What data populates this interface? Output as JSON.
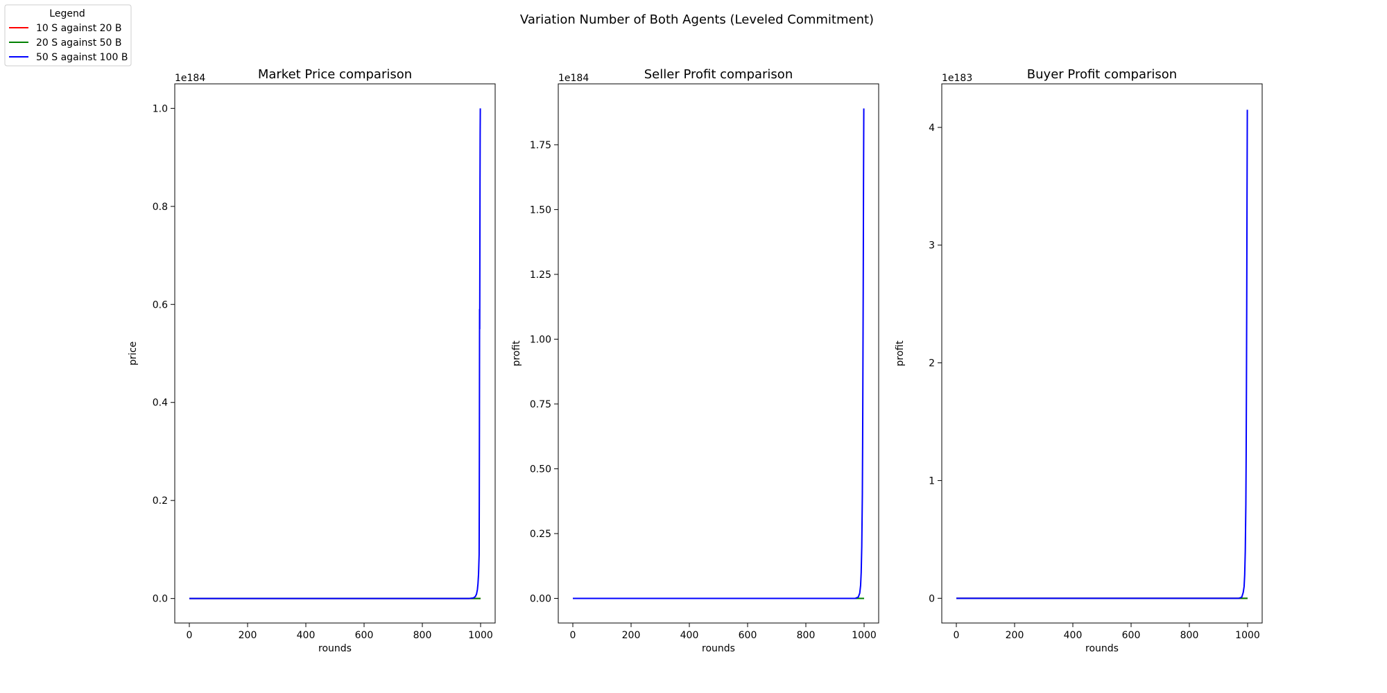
{
  "figure": {
    "suptitle": "Variation Number of Both Agents (Leveled Commitment)"
  },
  "legend": {
    "title": "Legend",
    "placement": "top-left",
    "entries": [
      {
        "label": "10 S against 20 B",
        "color": "#ff0000"
      },
      {
        "label": "20 S against 50 B",
        "color": "#008000"
      },
      {
        "label": "50 S against 100 B",
        "color": "#0000ff"
      }
    ]
  },
  "chart_data": [
    {
      "type": "line",
      "title": "Market Price comparison",
      "xlabel": "rounds",
      "ylabel": "price",
      "offset_text": "1e184",
      "xlim": [
        -50,
        1050
      ],
      "ylim": [
        -0.05,
        1.05
      ],
      "xticks": [
        0,
        200,
        400,
        600,
        800,
        1000
      ],
      "xtick_labels": [
        "0",
        "200",
        "400",
        "600",
        "800",
        "1000"
      ],
      "yticks": [
        0.0,
        0.2,
        0.4,
        0.6,
        0.8,
        1.0
      ],
      "ytick_labels": [
        "0.0",
        "0.2",
        "0.4",
        "0.6",
        "0.8",
        "1.0"
      ],
      "grid": false,
      "series": [
        {
          "name": "10 S against 20 B",
          "color": "#ff0000",
          "x": [
            0,
            1000
          ],
          "y": [
            0,
            0
          ]
        },
        {
          "name": "20 S against 50 B",
          "color": "#008000",
          "x": [
            0,
            1000
          ],
          "y": [
            0,
            0
          ]
        },
        {
          "name": "50 S against 100 B",
          "color": "#0000ff",
          "x": [
            0,
            960,
            975,
            982,
            986,
            989,
            991,
            993,
            994,
            995,
            995.5,
            996,
            996.5,
            997,
            997.5,
            998,
            998.5,
            999
          ],
          "y": [
            0,
            0,
            0.001,
            0.004,
            0.009,
            0.018,
            0.03,
            0.05,
            0.07,
            0.09,
            0.2,
            0.35,
            0.59,
            0.55,
            0.7,
            0.85,
            0.95,
            1.0
          ]
        }
      ]
    },
    {
      "type": "line",
      "title": "Seller Profit comparison",
      "xlabel": "rounds",
      "ylabel": "profit",
      "offset_text": "1e184",
      "xlim": [
        -50,
        1050
      ],
      "ylim": [
        -0.095,
        1.985
      ],
      "xticks": [
        0,
        200,
        400,
        600,
        800,
        1000
      ],
      "xtick_labels": [
        "0",
        "200",
        "400",
        "600",
        "800",
        "1000"
      ],
      "yticks": [
        0.0,
        0.25,
        0.5,
        0.75,
        1.0,
        1.25,
        1.5,
        1.75
      ],
      "ytick_labels": [
        "0.00",
        "0.25",
        "0.50",
        "0.75",
        "1.00",
        "1.25",
        "1.50",
        "1.75"
      ],
      "grid": false,
      "series": [
        {
          "name": "10 S against 20 B",
          "color": "#ff0000",
          "x": [
            0,
            1000
          ],
          "y": [
            0,
            0
          ]
        },
        {
          "name": "20 S against 50 B",
          "color": "#008000",
          "x": [
            0,
            1000
          ],
          "y": [
            0,
            0
          ]
        },
        {
          "name": "50 S against 100 B",
          "color": "#0000ff",
          "x": [
            0,
            970,
            980,
            985,
            988,
            990,
            992,
            994,
            995,
            996,
            997,
            998,
            999
          ],
          "y": [
            0,
            0,
            0.005,
            0.02,
            0.05,
            0.1,
            0.2,
            0.4,
            0.6,
            0.9,
            1.2,
            1.6,
            1.89
          ]
        }
      ]
    },
    {
      "type": "line",
      "title": "Buyer Profit comparison",
      "xlabel": "rounds",
      "ylabel": "profit",
      "offset_text": "1e183",
      "xlim": [
        -50,
        1050
      ],
      "ylim": [
        -0.21,
        4.37
      ],
      "xticks": [
        0,
        200,
        400,
        600,
        800,
        1000
      ],
      "xtick_labels": [
        "0",
        "200",
        "400",
        "600",
        "800",
        "1000"
      ],
      "yticks": [
        0,
        1,
        2,
        3,
        4
      ],
      "ytick_labels": [
        "0",
        "1",
        "2",
        "3",
        "4"
      ],
      "grid": false,
      "series": [
        {
          "name": "10 S against 20 B",
          "color": "#ff0000",
          "x": [
            0,
            1000
          ],
          "y": [
            0,
            0
          ]
        },
        {
          "name": "20 S against 50 B",
          "color": "#008000",
          "x": [
            0,
            1000
          ],
          "y": [
            0,
            0
          ]
        },
        {
          "name": "50 S against 100 B",
          "color": "#0000ff",
          "x": [
            0,
            970,
            980,
            985,
            988,
            990,
            992,
            994,
            995,
            996,
            997,
            998,
            999
          ],
          "y": [
            0,
            0,
            0.01,
            0.05,
            0.1,
            0.2,
            0.4,
            0.8,
            1.2,
            1.8,
            2.5,
            3.4,
            4.15
          ]
        }
      ]
    }
  ]
}
